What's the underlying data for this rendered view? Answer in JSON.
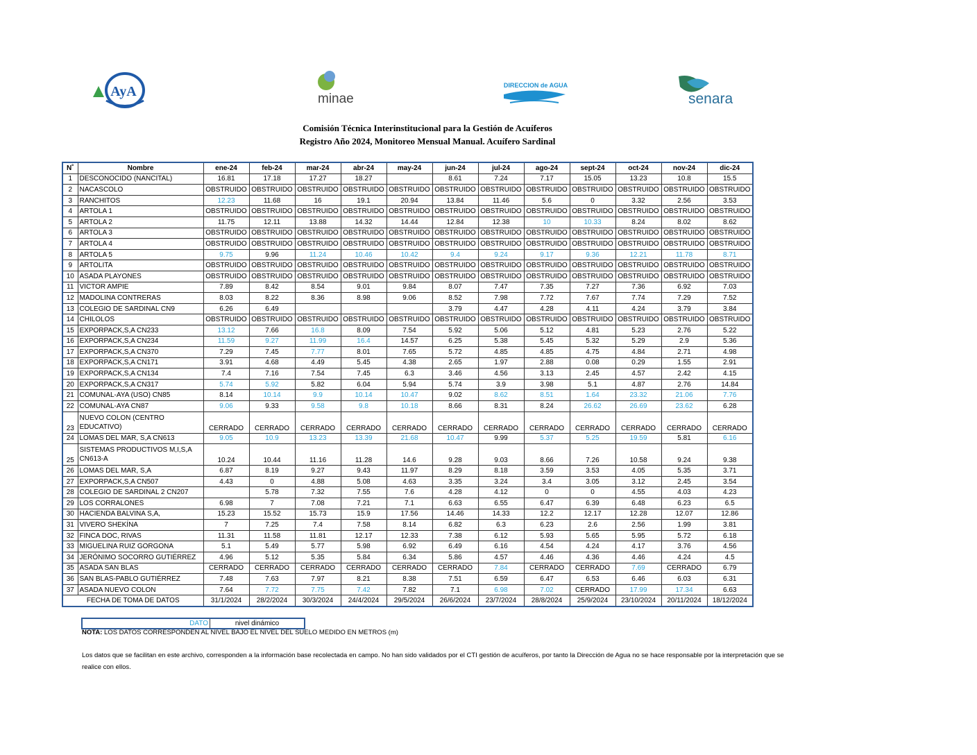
{
  "logos": [
    "AyA",
    "minae",
    "DIRECCION de AGUA",
    "senara"
  ],
  "title": [
    "Comisión Técnica Interinstitucional para la Gestión de Acuíferos",
    "Registro Año 2024, Monitoreo Mensual Manual. Acuífero Sardinal"
  ],
  "table": {
    "columns": [
      "N˚",
      "Nombre",
      "ene-24",
      "feb-24",
      "mar-24",
      "abr-24",
      "may-24",
      "jun-24",
      "jul-24",
      "ago-24",
      "sept-24",
      "oct-24",
      "nov-24",
      "dic-24"
    ],
    "dynamic_color": "#2aa4d8",
    "rows": [
      {
        "n": 1,
        "name": "DESCONOCIDO (NANCITAL)",
        "values": [
          16.81,
          17.18,
          17.27,
          18.27,
          null,
          8.61,
          7.24,
          7.17,
          15.05,
          13.23,
          10.8,
          15.5
        ]
      },
      {
        "n": 2,
        "name": "NACASCOLO",
        "values": [
          "OBSTRUIDO",
          "OBSTRUIDO",
          "OBSTRUIDO",
          "OBSTRUIDO",
          "OBSTRUIDO",
          "OBSTRUIDO",
          "OBSTRUIDO",
          "OBSTRUIDO",
          "OBSTRUIDO",
          "OBSTRUIDO",
          "OBSTRUIDO",
          "OBSTRUIDO"
        ]
      },
      {
        "n": 3,
        "name": "RANCHITOS",
        "values": [
          12.23,
          11.68,
          16,
          19.1,
          20.94,
          13.84,
          11.46,
          5.6,
          0,
          3.32,
          2.56,
          3.53
        ],
        "dynamic": [
          true,
          false,
          false,
          false,
          false,
          false,
          false,
          false,
          false,
          false,
          false,
          false
        ]
      },
      {
        "n": 4,
        "name": "ARTOLA 1",
        "values": [
          "OBSTRUIDO",
          "OBSTRUIDO",
          "OBSTRUIDO",
          "OBSTRUIDO",
          "OBSTRUIDO",
          "OBSTRUIDO",
          "OBSTRUIDO",
          "OBSTRUIDO",
          "OBSTRUIDO",
          "OBSTRUIDO",
          "OBSTRUIDO",
          "OBSTRUIDO"
        ]
      },
      {
        "n": 5,
        "name": "ARTOLA 2",
        "values": [
          11.75,
          12.11,
          13.88,
          14.32,
          14.44,
          12.84,
          12.38,
          10,
          10.33,
          8.24,
          8.02,
          8.62
        ],
        "dynamic": [
          false,
          false,
          false,
          false,
          false,
          false,
          false,
          true,
          true,
          false,
          false,
          false
        ]
      },
      {
        "n": 6,
        "name": "ARTOLA 3",
        "values": [
          "OBSTRUIDO",
          "OBSTRUIDO",
          "OBSTRUIDO",
          "OBSTRUIDO",
          "OBSTRUIDO",
          "OBSTRUIDO",
          "OBSTRUIDO",
          "OBSTRUIDO",
          "OBSTRUIDO",
          "OBSTRUIDO",
          "OBSTRUIDO",
          "OBSTRUIDO"
        ]
      },
      {
        "n": 7,
        "name": "ARTOLA 4",
        "values": [
          "OBSTRUIDO",
          "OBSTRUIDO",
          "OBSTRUIDO",
          "OBSTRUIDO",
          "OBSTRUIDO",
          "OBSTRUIDO",
          "OBSTRUIDO",
          "OBSTRUIDO",
          "OBSTRUIDO",
          "OBSTRUIDO",
          "OBSTRUIDO",
          "OBSTRUIDO"
        ]
      },
      {
        "n": 8,
        "name": "ARTOLA 5",
        "values": [
          9.75,
          9.96,
          11.24,
          10.46,
          10.42,
          9.4,
          9.24,
          9.17,
          9.36,
          12.21,
          11.78,
          8.71
        ],
        "dynamic": [
          true,
          false,
          true,
          true,
          true,
          true,
          true,
          true,
          true,
          true,
          true,
          true
        ]
      },
      {
        "n": 9,
        "name": "ARTOLITA",
        "values": [
          "OBSTRUIDO",
          "OBSTRUIDO",
          "OBSTRUIDO",
          "OBSTRUIDO",
          "OBSTRUIDO",
          "OBSTRUIDO",
          "OBSTRUIDO",
          "OBSTRUIDO",
          "OBSTRUIDO",
          "OBSTRUIDO",
          "OBSTRUIDO",
          "OBSTRUIDO"
        ]
      },
      {
        "n": 10,
        "name": "ASADA PLAYONES",
        "values": [
          "OBSTRUIDO",
          "OBSTRUIDO",
          "OBSTRUIDO",
          "OBSTRUIDO",
          "OBSTRUIDO",
          "OBSTRUIDO",
          "OBSTRUIDO",
          "OBSTRUIDO",
          "OBSTRUIDO",
          "OBSTRUIDO",
          "OBSTRUIDO",
          "OBSTRUIDO"
        ]
      },
      {
        "n": 11,
        "name": "VICTOR AMPIE",
        "values": [
          7.89,
          8.42,
          8.54,
          9.01,
          9.84,
          8.07,
          7.47,
          7.35,
          7.27,
          7.36,
          6.92,
          7.03
        ]
      },
      {
        "n": 12,
        "name": "MADOLINA CONTRERAS",
        "values": [
          8.03,
          8.22,
          8.36,
          8.98,
          9.06,
          8.52,
          7.98,
          7.72,
          7.67,
          7.74,
          7.29,
          7.52
        ]
      },
      {
        "n": 13,
        "name": "COLEGIO DE SARDINAL CN9",
        "values": [
          6.26,
          6.49,
          null,
          null,
          null,
          3.79,
          4.47,
          4.28,
          4.11,
          4.24,
          3.79,
          3.84
        ]
      },
      {
        "n": 14,
        "name": "CHILOLOS",
        "values": [
          "OBSTRUIDO",
          "OBSTRUIDO",
          "OBSTRUIDO",
          "OBSTRUIDO",
          "OBSTRUIDO",
          "OBSTRUIDO",
          "OBSTRUIDO",
          "OBSTRUIDO",
          "OBSTRUIDO",
          "OBSTRUIDO",
          "OBSTRUIDO",
          "OBSTRUIDO"
        ]
      },
      {
        "n": 15,
        "name": "EXPORPACK,S,A CN233",
        "values": [
          13.12,
          7.66,
          16.8,
          8.09,
          7.54,
          5.92,
          5.06,
          5.12,
          4.81,
          5.23,
          2.76,
          5.22
        ],
        "dynamic": [
          true,
          false,
          true,
          false,
          false,
          false,
          false,
          false,
          false,
          false,
          false,
          false
        ]
      },
      {
        "n": 16,
        "name": "EXPORPACK,S,A CN234",
        "values": [
          11.59,
          9.27,
          11.99,
          16.4,
          14.57,
          6.25,
          5.38,
          5.45,
          5.32,
          5.29,
          2.9,
          5.36
        ],
        "dynamic": [
          true,
          true,
          true,
          true,
          false,
          false,
          false,
          false,
          false,
          false,
          false,
          false
        ]
      },
      {
        "n": 17,
        "name": "EXPORPACK,S,A CN370",
        "values": [
          7.29,
          7.45,
          7.77,
          8.01,
          7.65,
          5.72,
          4.85,
          4.85,
          4.75,
          4.84,
          2.71,
          4.98
        ],
        "dynamic": [
          false,
          false,
          true,
          false,
          false,
          false,
          false,
          false,
          false,
          false,
          false,
          false
        ]
      },
      {
        "n": 18,
        "name": "EXPORPACK,S,A CN171",
        "values": [
          3.91,
          4.68,
          4.49,
          5.45,
          4.38,
          2.65,
          1.97,
          2.88,
          0.08,
          0.29,
          1.55,
          2.91
        ]
      },
      {
        "n": 19,
        "name": "EXPORPACK,S,A CN134",
        "values": [
          7.4,
          7.16,
          7.54,
          7.45,
          6.3,
          3.46,
          4.56,
          3.13,
          2.45,
          4.57,
          2.42,
          4.15
        ]
      },
      {
        "n": 20,
        "name": "EXPORPACK,S,A CN317",
        "values": [
          5.74,
          5.92,
          5.82,
          6.04,
          5.94,
          5.74,
          3.9,
          3.98,
          5.1,
          4.87,
          2.76,
          14.84
        ],
        "dynamic": [
          true,
          true,
          false,
          false,
          false,
          false,
          false,
          false,
          false,
          false,
          false,
          false
        ]
      },
      {
        "n": 21,
        "name": "COMUNAL-AYA (USO) CN85",
        "values": [
          8.14,
          10.14,
          9.9,
          10.14,
          10.47,
          9.02,
          8.62,
          8.51,
          1.64,
          23.32,
          21.06,
          7.76
        ],
        "dynamic": [
          false,
          true,
          true,
          true,
          true,
          false,
          true,
          true,
          true,
          true,
          true,
          true
        ]
      },
      {
        "n": 22,
        "name": "COMUNAL-AYA CN87",
        "values": [
          9.06,
          9.33,
          9.58,
          9.8,
          10.18,
          8.66,
          8.31,
          8.24,
          26.62,
          26.69,
          23.62,
          6.28
        ],
        "dynamic": [
          true,
          false,
          true,
          true,
          true,
          false,
          false,
          false,
          true,
          true,
          true,
          false
        ]
      },
      {
        "n": 23,
        "name": "NUEVO COLON (CENTRO EDUCATIVO)",
        "values": [
          "CERRADO",
          "CERRADO",
          "CERRADO",
          "CERRADO",
          "CERRADO",
          "CERRADO",
          "CERRADO",
          "CERRADO",
          "CERRADO",
          "CERRADO",
          "CERRADO",
          "CERRADO"
        ]
      },
      {
        "n": 24,
        "name": "LOMAS DEL MAR, S,A CN613",
        "values": [
          9.05,
          10.9,
          13.23,
          13.39,
          21.68,
          10.47,
          9.99,
          5.37,
          5.25,
          19.59,
          5.81,
          6.16
        ],
        "dynamic": [
          true,
          true,
          true,
          true,
          true,
          true,
          false,
          true,
          true,
          true,
          false,
          true
        ]
      },
      {
        "n": 25,
        "name": "SISTEMAS PRODUCTIVOS M,I,S,A CN613-A",
        "values": [
          10.24,
          10.44,
          11.16,
          11.28,
          14.6,
          9.28,
          9.03,
          8.66,
          7.26,
          10.58,
          9.24,
          9.38
        ]
      },
      {
        "n": 26,
        "name": "LOMAS DEL MAR, S,A",
        "values": [
          6.87,
          8.19,
          9.27,
          9.43,
          11.97,
          8.29,
          8.18,
          3.59,
          3.53,
          4.05,
          5.35,
          3.71
        ]
      },
      {
        "n": 27,
        "name": "EXPORPACK,S,A CN507",
        "values": [
          4.43,
          0,
          4.88,
          5.08,
          4.63,
          3.35,
          3.24,
          3.4,
          3.05,
          3.12,
          2.45,
          3.54
        ]
      },
      {
        "n": 28,
        "name": "COLEGIO DE SARDINAL 2 CN207",
        "values": [
          null,
          5.78,
          7.32,
          7.55,
          7.6,
          4.28,
          4.12,
          0,
          0,
          4.55,
          4.03,
          4.23
        ]
      },
      {
        "n": 29,
        "name": "LOS CORRALONES",
        "values": [
          6.98,
          7,
          7.08,
          7.21,
          7.1,
          6.63,
          6.55,
          6.47,
          6.39,
          6.48,
          6.23,
          6.5
        ]
      },
      {
        "n": 30,
        "name": "HACIENDA BALVINA S,A,",
        "values": [
          15.23,
          15.52,
          15.73,
          15.9,
          17.56,
          14.46,
          14.33,
          12.2,
          12.17,
          12.28,
          12.07,
          12.86
        ]
      },
      {
        "n": 31,
        "name": "VIVERO SHEKÍNA",
        "values": [
          7,
          7.25,
          7.4,
          7.58,
          8.14,
          6.82,
          6.3,
          6.23,
          2.6,
          2.56,
          1.99,
          3.81
        ]
      },
      {
        "n": 32,
        "name": "FINCA DOC, RIVAS",
        "values": [
          11.31,
          11.58,
          11.81,
          12.17,
          12.33,
          7.38,
          6.12,
          5.93,
          5.65,
          5.95,
          5.72,
          6.18
        ]
      },
      {
        "n": 33,
        "name": "MIGUELINA RUIZ GORGONA",
        "values": [
          5.1,
          5.49,
          5.77,
          5.98,
          6.92,
          6.49,
          6.16,
          4.54,
          4.24,
          4.17,
          3.76,
          4.56
        ]
      },
      {
        "n": 34,
        "name": "JERÓNIMO SOCORRO GUTIÉRREZ",
        "values": [
          4.96,
          5.12,
          5.35,
          5.84,
          6.34,
          5.86,
          4.57,
          4.46,
          4.36,
          4.46,
          4.24,
          4.5
        ]
      },
      {
        "n": 35,
        "name": "ASADA SAN BLAS",
        "values": [
          "CERRADO",
          "CERRADO",
          "CERRADO",
          "CERRADO",
          "CERRADO",
          "CERRADO",
          7.84,
          "CERRADO",
          "CERRADO",
          7.69,
          "CERRADO",
          6.79
        ],
        "dynamic": [
          false,
          false,
          false,
          false,
          false,
          false,
          true,
          false,
          false,
          true,
          false,
          false
        ]
      },
      {
        "n": 36,
        "name": "SAN BLAS-PABLO GUTIÉRREZ",
        "values": [
          7.48,
          7.63,
          7.97,
          8.21,
          8.38,
          7.51,
          6.59,
          6.47,
          6.53,
          6.46,
          6.03,
          6.31
        ]
      },
      {
        "n": 37,
        "name": "ASADA NUEVO COLON",
        "values": [
          7.64,
          7.72,
          7.75,
          7.42,
          7.82,
          7.1,
          6.98,
          7.02,
          "CERRADO",
          17.99,
          17.34,
          6.63
        ],
        "dynamic": [
          false,
          true,
          true,
          true,
          false,
          false,
          true,
          true,
          false,
          true,
          true,
          false
        ]
      }
    ],
    "footer": {
      "label": "FECHA DE TOMA DE DATOS",
      "values": [
        "31/1/2024",
        "28/2/2024",
        "30/3/2024",
        "24/4/2024",
        "29/5/2024",
        "26/6/2024",
        "23/7/2024",
        "28/8/2024",
        "25/9/2024",
        "23/10/2024",
        "20/11/2024",
        "18/12/2024"
      ]
    }
  },
  "legend": {
    "key": "DATO",
    "meaning": "nivel dinámico"
  },
  "note": {
    "label": "NOTA:",
    "text": "LOS DATOS CORRESPONDEN AL NIVEL BAJO EL NIVEL DEL SUELO MEDIDO EN METROS (m)"
  },
  "disclaimer": "Los datos que se facilitan en este archivo, corresponden a la información base recolectada en campo. No han sido validados por el CTI gestión de acuíferos, por tanto la Dirección de Agua no se hace responsable por la interpretación que se realice con ellos."
}
